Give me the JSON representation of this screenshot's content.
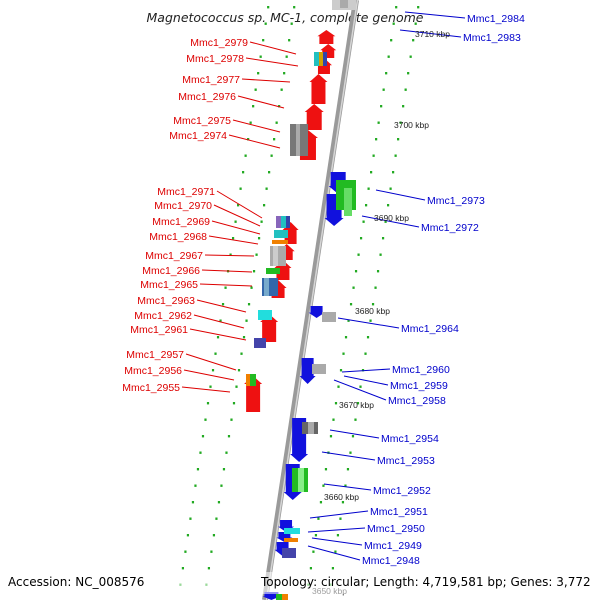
{
  "title": "Magnetococcus sp. MC-1, complete genome",
  "footer": {
    "accession": "Accession: NC_008576",
    "topology": "Topology: circular; Length: 4,719,581 bp; Genes: 3,772"
  },
  "colors": {
    "forward": "#ee1111",
    "reverse": "#1111dd",
    "backbone": "#888888",
    "tick": "#22aa22"
  },
  "kbp_labels": [
    "3710 kbp",
    "3700 kbp",
    "3690 kbp",
    "3680 kbp",
    "3670 kbp",
    "3660 kbp",
    "3650 kbp"
  ],
  "left_labels": [
    "Mmc1_2979",
    "Mmc1_2978",
    "Mmc1_2977",
    "Mmc1_2976",
    "Mmc1_2975",
    "Mmc1_2974",
    "Mmc1_2971",
    "Mmc1_2970",
    "Mmc1_2969",
    "Mmc1_2968",
    "Mmc1_2967",
    "Mmc1_2966",
    "Mmc1_2965",
    "Mmc1_2963",
    "Mmc1_2962",
    "Mmc1_2961",
    "Mmc1_2957",
    "Mmc1_2956",
    "Mmc1_2955"
  ],
  "right_labels": [
    "Mmc1_2984",
    "Mmc1_2983",
    "Mmc1_2973",
    "Mmc1_2972",
    "Mmc1_2964",
    "Mmc1_2960",
    "Mmc1_2959",
    "Mmc1_2958",
    "Mmc1_2954",
    "Mmc1_2953",
    "Mmc1_2952",
    "Mmc1_2951",
    "Mmc1_2950",
    "Mmc1_2949",
    "Mmc1_2948"
  ]
}
